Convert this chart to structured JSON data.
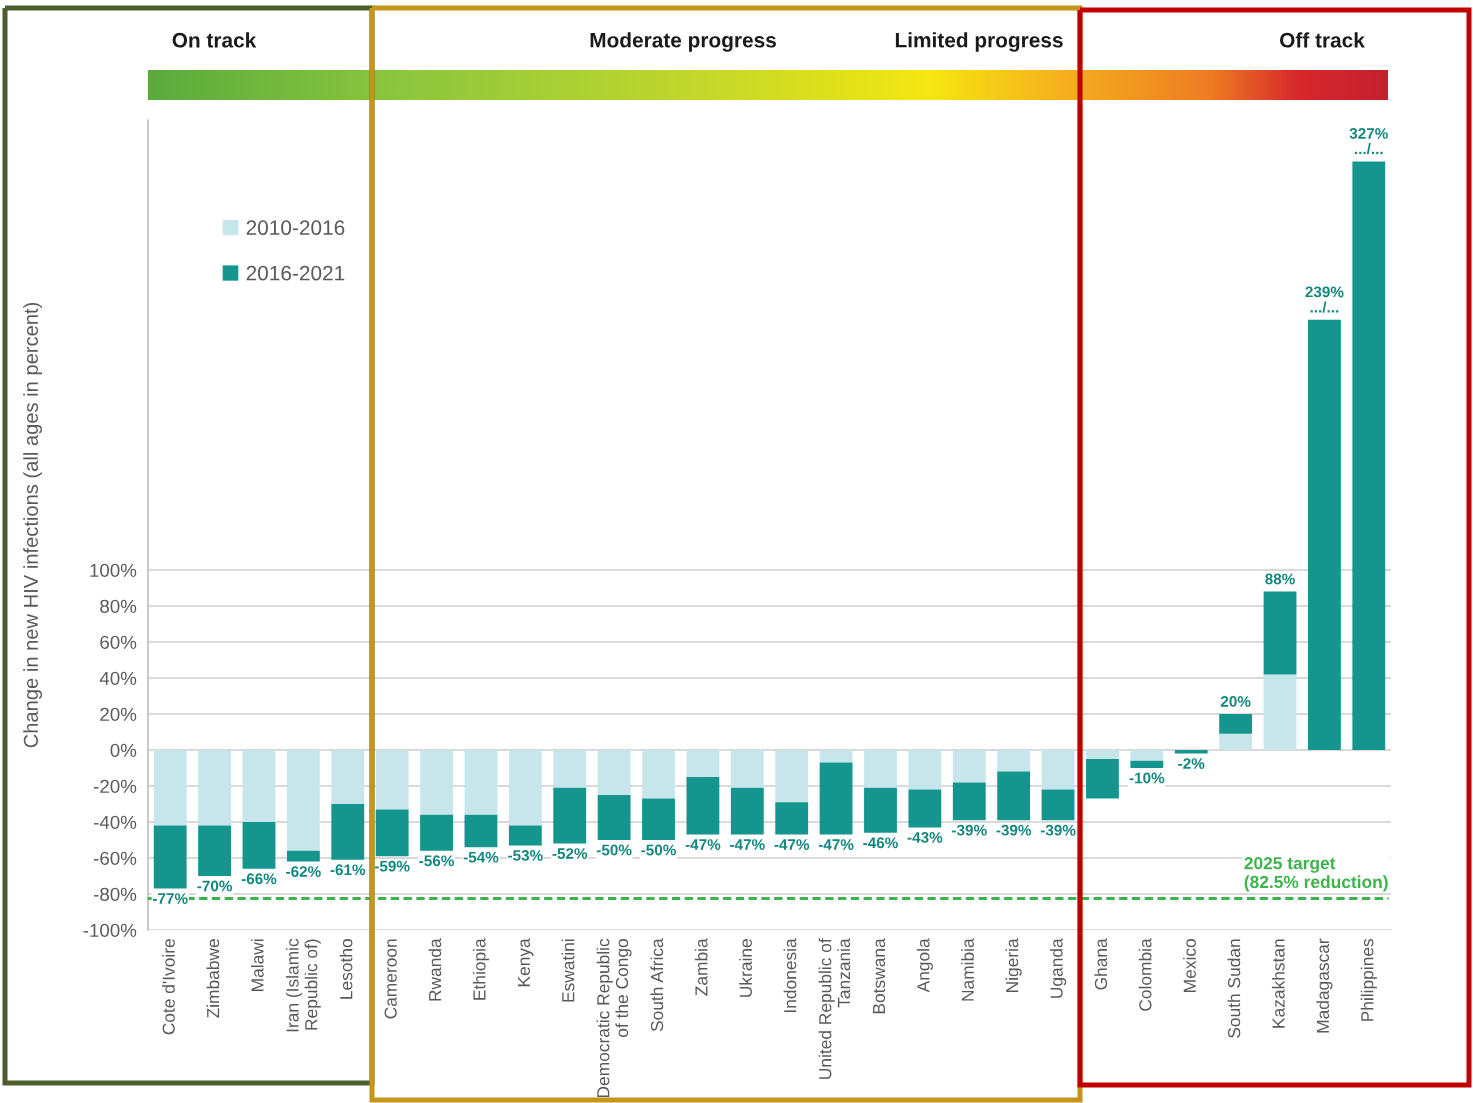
{
  "chart_data": {
    "type": "bar",
    "stacked": true,
    "ylabel": "Change in new HIV infections (all ages in percent)",
    "categories": [
      "Cote d'Ivoire",
      "Zimbabwe",
      "Malawi",
      "Iran (Islamic Republic of)",
      "Lesotho",
      "Cameroon",
      "Rwanda",
      "Ethiopia",
      "Kenya",
      "Eswatini",
      "Democratic Republic of the Congo",
      "South Africa",
      "Zambia",
      "Ukraine",
      "Indonesia",
      "United Republic of Tanzania",
      "Botswana",
      "Angola",
      "Namibia",
      "Nigeria",
      "Uganda",
      "Ghana",
      "Colombia",
      "Mexico",
      "South Sudan",
      "Kazakhstan",
      "Madagascar",
      "Philippines"
    ],
    "series": [
      {
        "name": "2010-2016",
        "color": "#c6e6eb",
        "values": [
          -42,
          -42,
          -40,
          -56,
          -30,
          -33,
          -36,
          -36,
          -42,
          -21,
          -25,
          -27,
          -15,
          -21,
          -29,
          -7,
          -21,
          -22,
          -18,
          -12,
          -22,
          -5,
          -6,
          0,
          9,
          42,
          null,
          null
        ]
      },
      {
        "name": "2016-2021",
        "color": "#14968f",
        "values": [
          -35,
          -28,
          -26,
          -6,
          -31,
          -26,
          -20,
          -18,
          -11,
          -31,
          -25,
          -23,
          -32,
          -26,
          -18,
          -40,
          -25,
          -21,
          -21,
          -27,
          -17,
          -22,
          -4,
          -2,
          11,
          46,
          null,
          null
        ]
      },
      {
        "color": "#14968f",
        "values": [
          null,
          null,
          null,
          null,
          null,
          null,
          null,
          null,
          null,
          null,
          null,
          null,
          null,
          null,
          null,
          null,
          null,
          null,
          null,
          null,
          null,
          null,
          null,
          null,
          null,
          null,
          239,
          327
        ]
      }
    ],
    "totals": [
      "-77%",
      "-70%",
      "-66%",
      "-62%",
      "-61%",
      "-59%",
      "-56%",
      "-54%",
      "-53%",
      "-52%",
      "-50%",
      "-50%",
      "-47%",
      "-47%",
      "-47%",
      "-47%",
      "-46%",
      "-43%",
      "-39%",
      "-39%",
      "-39%",
      null,
      "-10%",
      "-2%",
      "20%",
      "88%",
      "239%\n.../...",
      "327%\n.../..."
    ],
    "ylim": [
      -100,
      350
    ],
    "yticks": [
      {
        "value": -100,
        "label": "-100%"
      },
      {
        "value": -80,
        "label": "-80%"
      },
      {
        "value": -60,
        "label": "-60%"
      },
      {
        "value": -40,
        "label": "-40%"
      },
      {
        "value": -20,
        "label": "-20%"
      },
      {
        "value": 0,
        "label": "0%"
      },
      {
        "value": 20,
        "label": "20%"
      },
      {
        "value": 40,
        "label": "40%"
      },
      {
        "value": 60,
        "label": "60%"
      },
      {
        "value": 80,
        "label": "80%"
      },
      {
        "value": 100,
        "label": "100%"
      }
    ],
    "ref_lines": [
      {
        "axis": "y",
        "value": -82.5,
        "label": "2025 target\n(82.5% reduction)",
        "color": "#3cb44b",
        "line_style": "dashed"
      }
    ],
    "annotations": [
      "On track",
      "Moderate progress",
      "Limited progress",
      "Off track"
    ],
    "grid": "y",
    "legend": "top left"
  }
}
